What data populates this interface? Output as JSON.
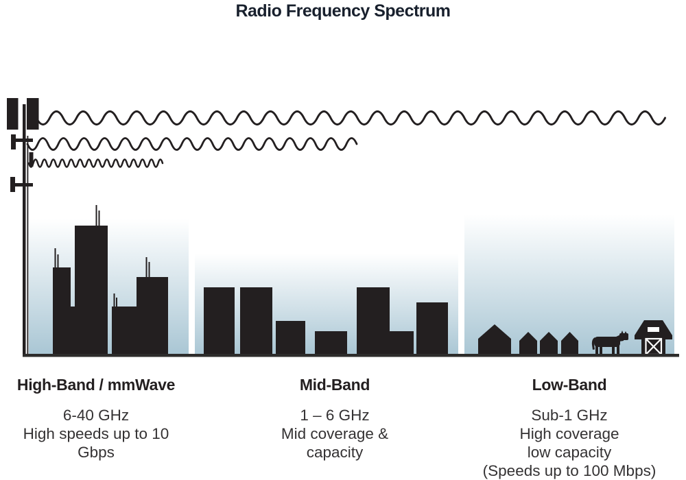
{
  "title": "Radio Frequency Spectrum",
  "colors": {
    "ink": "#231f20",
    "title_ink": "#18202d",
    "heading_ink": "#231f20",
    "body_text": "#343233",
    "ground": "#2d2c2b",
    "sky_top": "#ffffff",
    "sky_bottom": "#a9c6d4"
  },
  "icons": [
    "cell-tower-icon",
    "long-wavelength-wave-icon",
    "medium-wavelength-wave-icon",
    "short-wavelength-wave-icon",
    "skyscraper-city-icon",
    "midrise-city-icon",
    "house-icon",
    "cow-icon",
    "barn-icon",
    "ground-line"
  ],
  "sections": [
    {
      "id": "high-band",
      "heading": "High-Band / mmWave",
      "lines": [
        "6-40 GHz",
        "High speeds up to 10 Gbps"
      ]
    },
    {
      "id": "mid-band",
      "heading": "Mid-Band",
      "lines": [
        "1 – 6 GHz",
        "Mid coverage & capacity"
      ]
    },
    {
      "id": "low-band",
      "heading": "Low-Band",
      "lines": [
        "Sub-1 GHz",
        "High coverage",
        "low capacity",
        "(Speeds up to 100 Mbps)"
      ]
    }
  ]
}
